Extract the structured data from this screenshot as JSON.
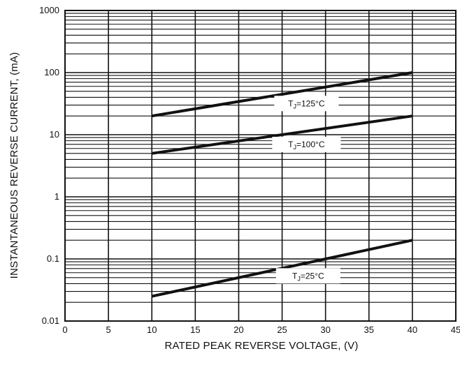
{
  "chart_data": {
    "type": "line",
    "xlabel": "RATED PEAK REVERSE VOLTAGE,  (V)",
    "ylabel": "INSTANTANEOUS REVERSE CURRENT, (mA)",
    "xlim": [
      0,
      45
    ],
    "ylim": [
      0.01,
      1000
    ],
    "yscale": "log",
    "grid": true,
    "x_ticks": [
      "0",
      "5",
      "10",
      "15",
      "20",
      "25",
      "30",
      "35",
      "40",
      "45"
    ],
    "y_ticks": [
      "0.01",
      "0.1",
      "1",
      "10",
      "100",
      "1000"
    ],
    "series": [
      {
        "name": "TJ=125°C",
        "label_prefix": "T",
        "label_sub": "J",
        "label_suffix": "=125°C",
        "x": [
          10,
          40
        ],
        "y": [
          20,
          100
        ]
      },
      {
        "name": "TJ=100°C",
        "label_prefix": "T",
        "label_sub": "J",
        "label_suffix": "=100°C",
        "x": [
          10,
          40
        ],
        "y": [
          5,
          20
        ]
      },
      {
        "name": "TJ=25°C",
        "label_prefix": "T",
        "label_sub": "J",
        "label_suffix": "=25°C",
        "x": [
          10,
          40
        ],
        "y": [
          0.025,
          0.2
        ]
      }
    ],
    "colors": {
      "line": "#111111",
      "grid": "#111111",
      "label_bg": "#ffffff"
    }
  }
}
